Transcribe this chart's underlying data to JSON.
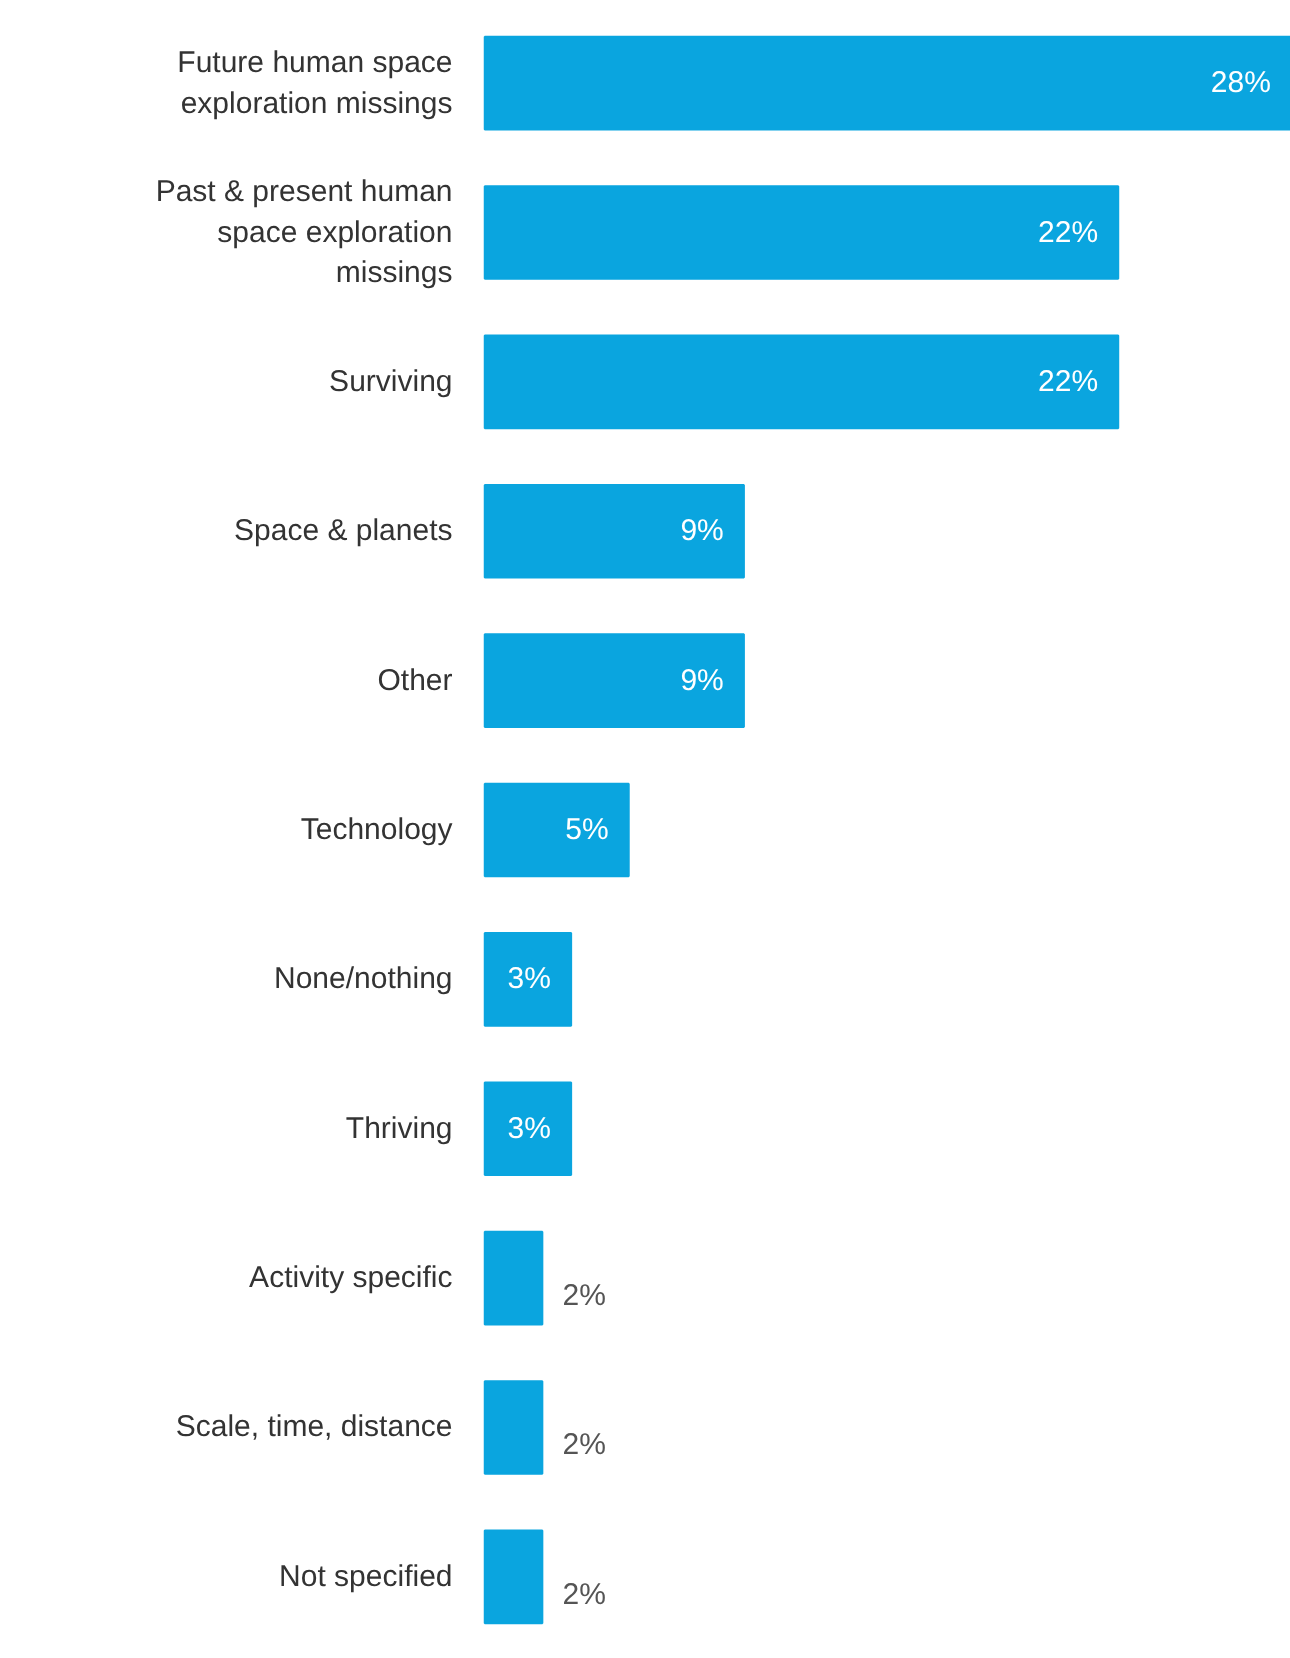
{
  "chart_data": {
    "type": "bar",
    "orientation": "horizontal",
    "categories": [
      "Future human space exploration missings",
      "Past & present human space exploration missings",
      "Surviving",
      "Space & planets",
      "Other",
      "Technology",
      "None/nothing",
      "Thriving",
      "Activity specific",
      "Scale, time, distance",
      "Not specified"
    ],
    "values": [
      28,
      22,
      22,
      9,
      9,
      5,
      3,
      3,
      2,
      2,
      2
    ],
    "value_labels": [
      "28%",
      "22%",
      "22%",
      "9%",
      "9%",
      "5%",
      "3%",
      "3%",
      "2%",
      "2%",
      "2%"
    ],
    "color": "#0aa5df",
    "tick_labels": false
  }
}
